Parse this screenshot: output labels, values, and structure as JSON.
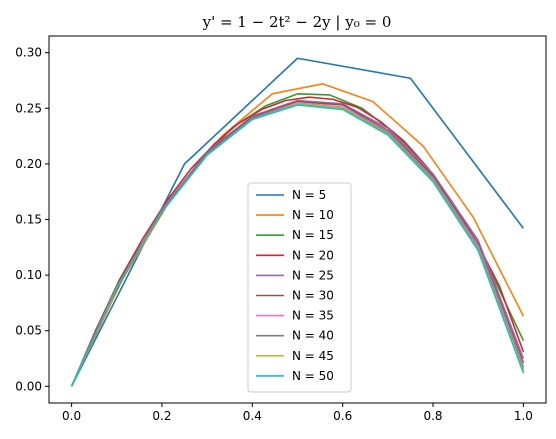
{
  "chart_data": {
    "type": "line",
    "title": "y' = 1 − 2t² − 2y | y₀ = 0",
    "xlabel": "",
    "ylabel": "",
    "xlim": [
      -0.05,
      1.05
    ],
    "ylim": [
      -0.015,
      0.315
    ],
    "xticks": [
      0.0,
      0.2,
      0.4,
      0.6,
      0.8,
      1.0
    ],
    "xtick_labels": [
      "0.0",
      "0.2",
      "0.4",
      "0.6",
      "0.8",
      "1.0"
    ],
    "yticks": [
      0.0,
      0.05,
      0.1,
      0.15,
      0.2,
      0.25,
      0.3
    ],
    "ytick_labels": [
      "0.00",
      "0.05",
      "0.10",
      "0.15",
      "0.20",
      "0.25",
      "0.30"
    ],
    "grid": false,
    "legend_position": "lower-center",
    "series": [
      {
        "name": "N = 5",
        "color": "#1f77b4",
        "x": [
          0,
          0.25,
          0.5,
          0.75,
          1.0
        ],
        "y": [
          0,
          0.2,
          0.295,
          0.277,
          0.142
        ]
      },
      {
        "name": "N = 10",
        "color": "#ff7f0e",
        "x": [
          0,
          0.111,
          0.222,
          0.333,
          0.444,
          0.556,
          0.667,
          0.778,
          0.889,
          1.0
        ],
        "y": [
          0,
          0.095,
          0.17,
          0.225,
          0.263,
          0.272,
          0.256,
          0.216,
          0.152,
          0.063
        ]
      },
      {
        "name": "N = 15",
        "color": "#2ca02c",
        "x": [
          0,
          0.071,
          0.143,
          0.214,
          0.286,
          0.357,
          0.429,
          0.5,
          0.571,
          0.643,
          0.714,
          0.786,
          0.857,
          0.929,
          1.0
        ],
        "y": [
          0,
          0.065,
          0.12,
          0.165,
          0.203,
          0.233,
          0.252,
          0.263,
          0.262,
          0.25,
          0.228,
          0.196,
          0.153,
          0.102,
          0.041
        ]
      },
      {
        "name": "N = 20",
        "color": "#d62728",
        "x": [
          0,
          0.053,
          0.105,
          0.158,
          0.211,
          0.263,
          0.316,
          0.368,
          0.421,
          0.474,
          0.526,
          0.579,
          0.632,
          0.684,
          0.737,
          0.789,
          0.842,
          0.895,
          0.947,
          1.0
        ],
        "y": [
          0,
          0.05,
          0.095,
          0.133,
          0.167,
          0.195,
          0.218,
          0.236,
          0.249,
          0.257,
          0.26,
          0.258,
          0.251,
          0.238,
          0.22,
          0.196,
          0.166,
          0.131,
          0.09,
          0.031
        ]
      },
      {
        "name": "N = 25",
        "color": "#9467bd",
        "x": [
          0,
          0.1,
          0.2,
          0.3,
          0.4,
          0.5,
          0.6,
          0.7,
          0.8,
          0.9,
          1.0
        ],
        "y": [
          0,
          0.089,
          0.159,
          0.211,
          0.243,
          0.257,
          0.254,
          0.232,
          0.191,
          0.131,
          0.025
        ]
      },
      {
        "name": "N = 30",
        "color": "#8c564b",
        "x": [
          0,
          0.1,
          0.2,
          0.3,
          0.4,
          0.5,
          0.6,
          0.7,
          0.8,
          0.9,
          1.0
        ],
        "y": [
          0,
          0.089,
          0.158,
          0.21,
          0.242,
          0.256,
          0.253,
          0.23,
          0.189,
          0.128,
          0.021
        ]
      },
      {
        "name": "N = 35",
        "color": "#e377c2",
        "x": [
          0,
          0.1,
          0.2,
          0.3,
          0.4,
          0.5,
          0.6,
          0.7,
          0.8,
          0.9,
          1.0
        ],
        "y": [
          0,
          0.089,
          0.158,
          0.209,
          0.241,
          0.255,
          0.251,
          0.229,
          0.187,
          0.126,
          0.018
        ]
      },
      {
        "name": "N = 40",
        "color": "#7f7f7f",
        "x": [
          0,
          0.1,
          0.2,
          0.3,
          0.4,
          0.5,
          0.6,
          0.7,
          0.8,
          0.9,
          1.0
        ],
        "y": [
          0,
          0.089,
          0.158,
          0.209,
          0.241,
          0.254,
          0.25,
          0.228,
          0.186,
          0.124,
          0.016
        ]
      },
      {
        "name": "N = 45",
        "color": "#bcbd22",
        "x": [
          0,
          0.1,
          0.2,
          0.3,
          0.4,
          0.5,
          0.6,
          0.7,
          0.8,
          0.9,
          1.0
        ],
        "y": [
          0,
          0.089,
          0.157,
          0.208,
          0.24,
          0.254,
          0.25,
          0.227,
          0.185,
          0.123,
          0.014
        ]
      },
      {
        "name": "N = 50",
        "color": "#17becf",
        "x": [
          0,
          0.1,
          0.2,
          0.3,
          0.4,
          0.5,
          0.6,
          0.7,
          0.8,
          0.9,
          1.0
        ],
        "y": [
          0,
          0.089,
          0.157,
          0.208,
          0.24,
          0.253,
          0.249,
          0.226,
          0.184,
          0.122,
          0.012
        ]
      }
    ]
  }
}
